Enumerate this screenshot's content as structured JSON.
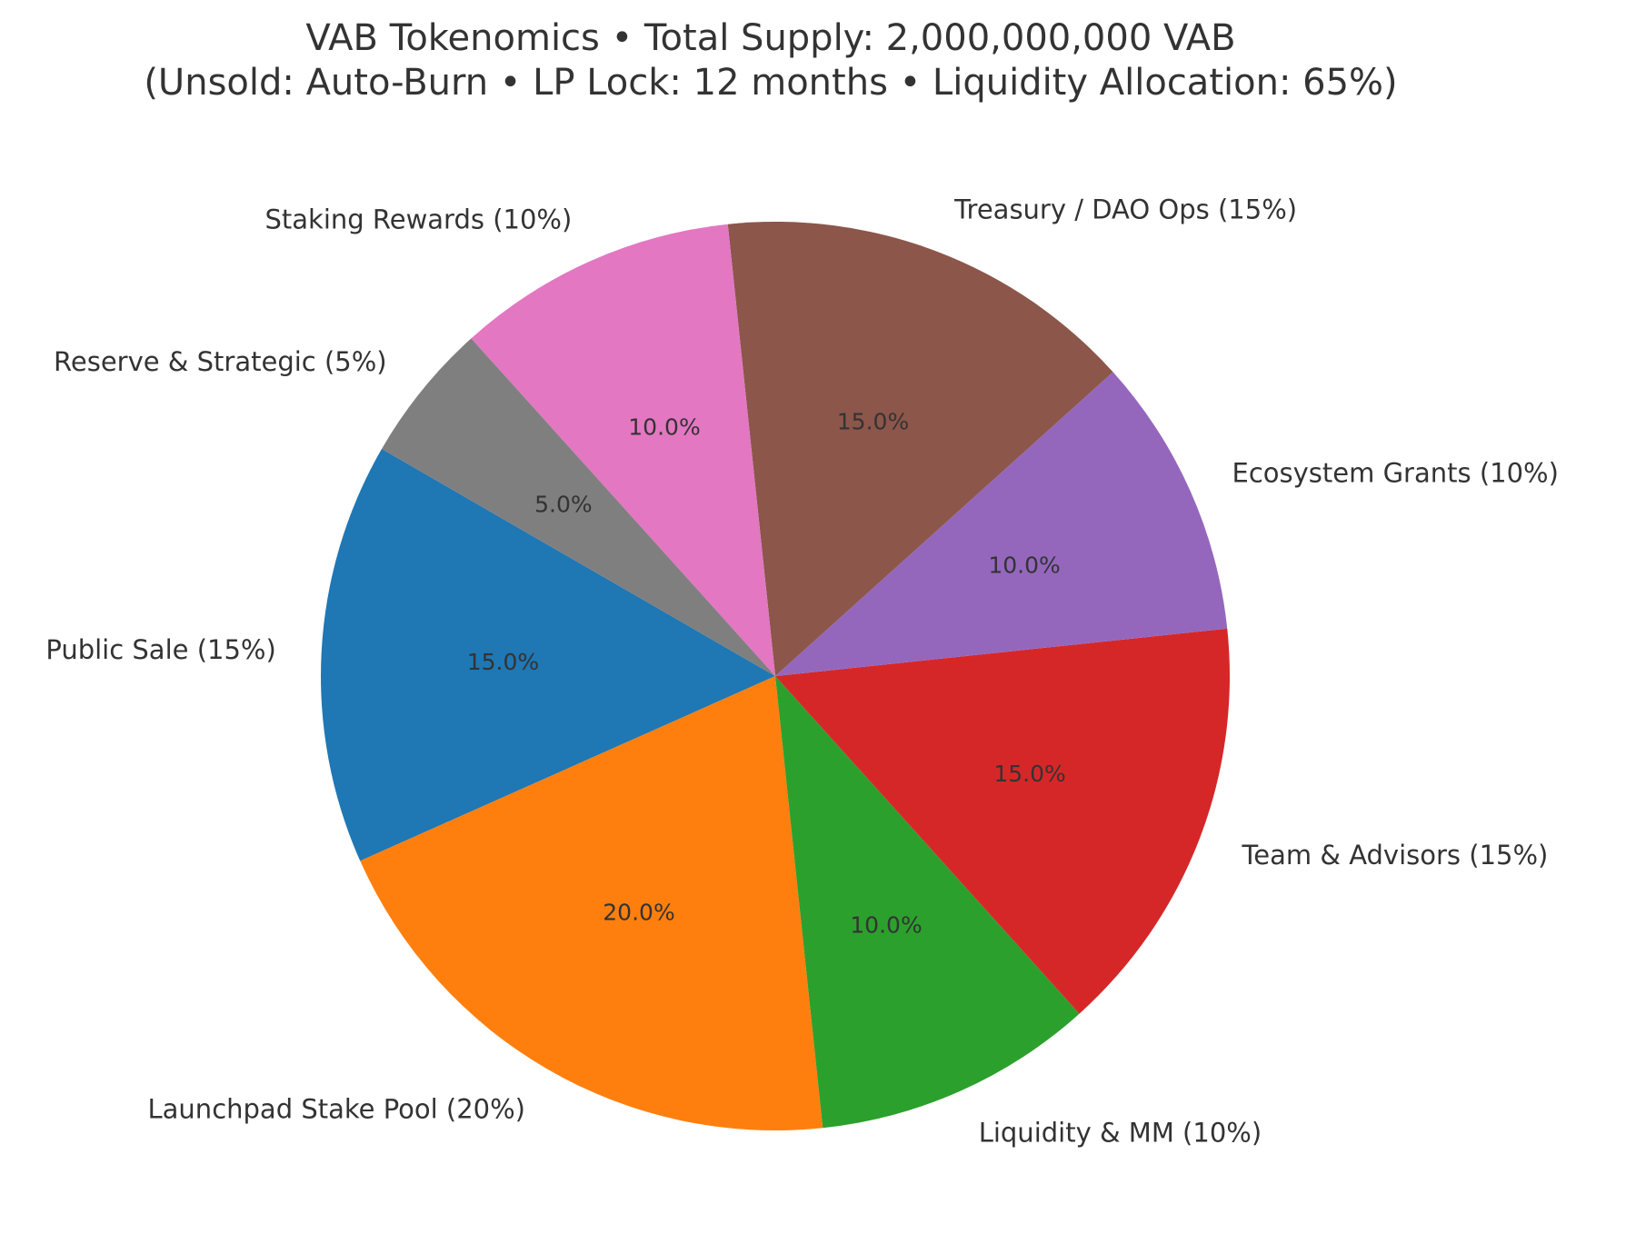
{
  "chart_data": {
    "type": "pie",
    "title": "VAB Tokenomics • Total Supply: 2,000,000,000 VAB",
    "subtitle": "(Unsold: Auto-Burn • LP Lock: 12 months • Liquidity Allocation: 65%)",
    "start_angle_deg": 150,
    "direction": "counterclockwise",
    "slices": [
      {
        "label": "Public Sale (15%)",
        "value": 15,
        "pct_label": "15.0%",
        "color": "#1f77b4"
      },
      {
        "label": "Launchpad Stake Pool (20%)",
        "value": 20,
        "pct_label": "20.0%",
        "color": "#ff7f0e"
      },
      {
        "label": "Liquidity & MM (10%)",
        "value": 10,
        "pct_label": "10.0%",
        "color": "#2ca02c"
      },
      {
        "label": "Team & Advisors (15%)",
        "value": 15,
        "pct_label": "15.0%",
        "color": "#d62728"
      },
      {
        "label": "Ecosystem Grants (10%)",
        "value": 10,
        "pct_label": "10.0%",
        "color": "#9467bd"
      },
      {
        "label": "Treasury / DAO Ops (15%)",
        "value": 15,
        "pct_label": "15.0%",
        "color": "#8c564b"
      },
      {
        "label": "Staking Rewards (10%)",
        "value": 10,
        "pct_label": "10.0%",
        "color": "#e377c2"
      },
      {
        "label": "Reserve & Strategic (5%)",
        "value": 5,
        "pct_label": "5.0%",
        "color": "#7f7f7f"
      }
    ]
  }
}
